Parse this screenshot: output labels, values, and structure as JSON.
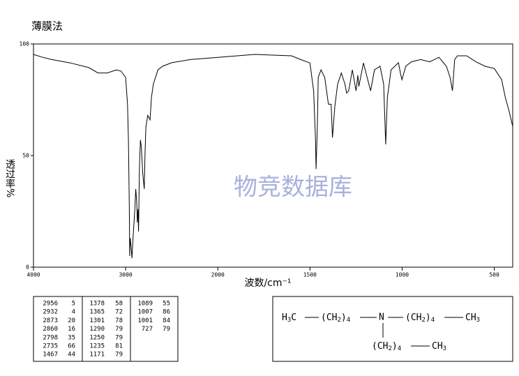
{
  "chart_data": {
    "type": "line",
    "title": "薄膜法",
    "x_label": "波数/cm⁻¹",
    "y_label": "透过率%",
    "watermark": "物竞数据库",
    "x": [
      4000,
      3900,
      3800,
      3600,
      3400,
      3300,
      3200,
      3100,
      3050,
      3000,
      2980,
      2970,
      2960,
      2956,
      2950,
      2940,
      2932,
      2920,
      2900,
      2890,
      2880,
      2873,
      2866,
      2860,
      2850,
      2840,
      2830,
      2815,
      2798,
      2790,
      2780,
      2760,
      2735,
      2720,
      2700,
      2650,
      2600,
      2500,
      2300,
      2000,
      1800,
      1600,
      1550,
      1500,
      1480,
      1470,
      1467,
      1460,
      1455,
      1440,
      1420,
      1400,
      1385,
      1378,
      1365,
      1350,
      1330,
      1310,
      1301,
      1290,
      1270,
      1250,
      1240,
      1235,
      1210,
      1190,
      1171,
      1150,
      1120,
      1100,
      1089,
      1080,
      1060,
      1040,
      1020,
      1007,
      1001,
      980,
      950,
      900,
      850,
      800,
      760,
      740,
      727,
      715,
      700,
      650,
      600,
      550,
      500,
      460,
      440,
      420,
      400
    ],
    "series": [
      {
        "name": "透过率",
        "color": "#000000",
        "values": [
          95.3,
          94,
          93,
          91.5,
          89.4,
          87,
          87,
          88.4,
          87.8,
          85,
          73,
          57,
          26,
          5,
          13,
          9,
          4,
          13,
          26,
          35,
          29,
          20,
          26,
          16,
          45,
          57,
          54,
          42,
          35,
          51,
          63,
          68,
          66,
          76,
          82,
          88.4,
          90,
          91.6,
          93,
          94,
          95.3,
          94.7,
          93,
          91.5,
          79,
          57,
          44,
          63,
          85,
          88.4,
          85,
          73,
          73,
          58,
          72,
          82,
          87,
          82,
          78,
          79,
          88.4,
          79,
          86,
          81,
          91.5,
          85,
          79,
          88.4,
          90,
          82,
          55,
          76,
          88.4,
          90,
          91.6,
          86,
          84,
          90,
          92,
          93,
          92,
          94,
          90,
          85,
          79,
          93,
          94.7,
          94.7,
          92,
          90,
          89,
          84,
          76,
          70,
          63
        ]
      }
    ],
    "xlim": [
      4000,
      400
    ],
    "xticks": [
      4000,
      3000,
      2000,
      1500,
      1000,
      500
    ],
    "ylim": [
      0,
      100
    ],
    "yticks": [
      0,
      50,
      100
    ]
  },
  "peak_table": {
    "columns": [
      [
        [
          2956,
          5
        ],
        [
          2932,
          4
        ],
        [
          2873,
          20
        ],
        [
          2860,
          16
        ],
        [
          2798,
          35
        ],
        [
          2735,
          66
        ],
        [
          1467,
          44
        ]
      ],
      [
        [
          1378,
          58
        ],
        [
          1365,
          72
        ],
        [
          1301,
          78
        ],
        [
          1290,
          79
        ],
        [
          1250,
          79
        ],
        [
          1235,
          81
        ],
        [
          1171,
          79
        ]
      ],
      [
        [
          1089,
          55
        ],
        [
          1007,
          86
        ],
        [
          1001,
          84
        ],
        [
          727,
          79
        ]
      ]
    ]
  },
  "structure": {
    "main": [
      "H",
      "3",
      "C",
      "(CH",
      "2",
      ")",
      "4",
      "N",
      "(CH",
      "2",
      ")",
      "4",
      "CH",
      "3"
    ],
    "branch": [
      "(CH",
      "2",
      ")",
      "4",
      "CH",
      "3"
    ]
  }
}
